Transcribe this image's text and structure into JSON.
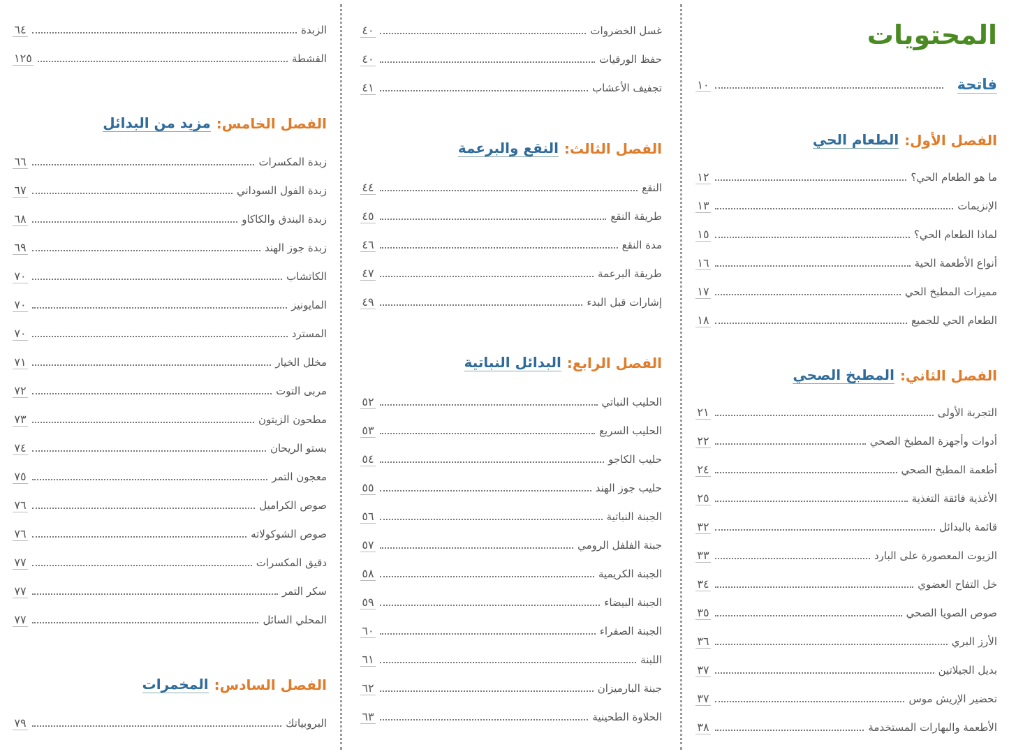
{
  "title": "المحتويات",
  "columns": [
    {
      "items": [
        {
          "name": "فاتحة",
          "page": "١٠"
        },
        {
          "label": "الفصل الأول:",
          "name": "الطعام الحي"
        },
        {
          "text": "ما هو الطعام الحي؟",
          "page": "١٢"
        },
        {
          "text": "الإنزيمات",
          "page": "١٣"
        },
        {
          "text": "لماذا الطعام الحي؟",
          "page": "١٥"
        },
        {
          "text": "أنواع الأطعمة الحية",
          "page": "١٦"
        },
        {
          "text": "مميزات المطبخ الحي",
          "page": "١٧"
        },
        {
          "text": "الطعام الحي للجميع",
          "page": "١٨"
        },
        {
          "label": "الفصل الثاني:",
          "name": "المطبخ الصحي"
        },
        {
          "text": "التجربة الأولى",
          "page": "٢١"
        },
        {
          "text": "أدوات وأجهزة المطبخ الصحي",
          "page": "٢٢"
        },
        {
          "text": "أطعمة المطبخ الصحي",
          "page": "٢٤"
        },
        {
          "text": "الأغذية فائقة التغذية",
          "page": "٢٥"
        },
        {
          "text": "قائمة بالبدائل",
          "page": "٣٢"
        },
        {
          "text": "الزيوت المعصورة على البارد",
          "page": "٣٣"
        },
        {
          "text": "خل التفاح العضوي",
          "page": "٣٤"
        },
        {
          "text": "صوص الصويا الصحي",
          "page": "٣٥"
        },
        {
          "text": "الأرز البري",
          "page": "٣٦"
        },
        {
          "text": "بديل الجيلاتين",
          "page": "٣٧"
        },
        {
          "text": "تحضير الإريش موس",
          "page": "٣٧"
        },
        {
          "text": "الأطعمة والبهارات المستخدمة",
          "page": "٣٨"
        }
      ]
    },
    {
      "items": [
        {
          "text": "غسل الخضروات",
          "page": "٤٠"
        },
        {
          "text": "حفظ الورقيات",
          "page": "٤٠"
        },
        {
          "text": "تجفيف الأعشاب",
          "page": "٤١"
        },
        {
          "label": "الفصل الثالث:",
          "name": "النقع والبرعمة"
        },
        {
          "text": "النقع",
          "page": "٤٤"
        },
        {
          "text": "طريقة النقع",
          "page": "٤٥"
        },
        {
          "text": "مدة النقع",
          "page": "٤٦"
        },
        {
          "text": "طريقة البرعمة",
          "page": "٤٧"
        },
        {
          "text": "إشارات قبل البدء",
          "page": "٤٩"
        },
        {
          "label": "الفصل الرابع:",
          "name": "البدائل النباتية"
        },
        {
          "text": "الحليب النباتي",
          "page": "٥٢"
        },
        {
          "text": "الحليب السريع",
          "page": "٥٣"
        },
        {
          "text": "حليب الكاجو",
          "page": "٥٤"
        },
        {
          "text": "حليب جوز الهند",
          "page": "٥٥"
        },
        {
          "text": "الجبنة النباتية",
          "page": "٥٦"
        },
        {
          "text": "جبنة الفلفل الرومي",
          "page": "٥٧"
        },
        {
          "text": "الجبنة الكريمية",
          "page": "٥٨"
        },
        {
          "text": "الجبنة البيضاء",
          "page": "٥٩"
        },
        {
          "text": "الجبنة الصفراء",
          "page": "٦٠"
        },
        {
          "text": "اللبنة",
          "page": "٦١"
        },
        {
          "text": "جبنة البارميزان",
          "page": "٦٢"
        },
        {
          "text": "الحلاوة الطحينية",
          "page": "٦٣"
        }
      ]
    },
    {
      "items": [
        {
          "text": "الزبدة",
          "page": "٦٤"
        },
        {
          "text": "القشطة",
          "page": "١٢٥"
        },
        {
          "label": "الفصل الخامس:",
          "name": "مزيد من البدائل"
        },
        {
          "text": "زبدة المكسرات",
          "page": "٦٦"
        },
        {
          "text": "زبدة الفول السوداني",
          "page": "٦٧"
        },
        {
          "text": "زبدة البندق والكاكاو",
          "page": "٦٨"
        },
        {
          "text": "زبدة جوز الهند",
          "page": "٦٩"
        },
        {
          "text": "الكاتشاب",
          "page": "٧٠"
        },
        {
          "text": "المايونيز",
          "page": "٧٠"
        },
        {
          "text": "المسترد",
          "page": "٧٠"
        },
        {
          "text": "مخلل الخيار",
          "page": "٧١"
        },
        {
          "text": "مربى التوت",
          "page": "٧٢"
        },
        {
          "text": "مطحون الزيتون",
          "page": "٧٣"
        },
        {
          "text": "بستو الريحان",
          "page": "٧٤"
        },
        {
          "text": "معجون التمر",
          "page": "٧٥"
        },
        {
          "text": "صوص الكراميل",
          "page": "٧٦"
        },
        {
          "text": "صوص الشوكولاته",
          "page": "٧٦"
        },
        {
          "text": "دقيق المكسرات",
          "page": "٧٧"
        },
        {
          "text": "سكر التمر",
          "page": "٧٧"
        },
        {
          "text": "المحلي السائل",
          "page": "٧٧"
        },
        {
          "label": "الفصل السادس:",
          "name": "المخمرات"
        },
        {
          "text": "البروبياتك",
          "page": "٧٩"
        }
      ]
    }
  ]
}
